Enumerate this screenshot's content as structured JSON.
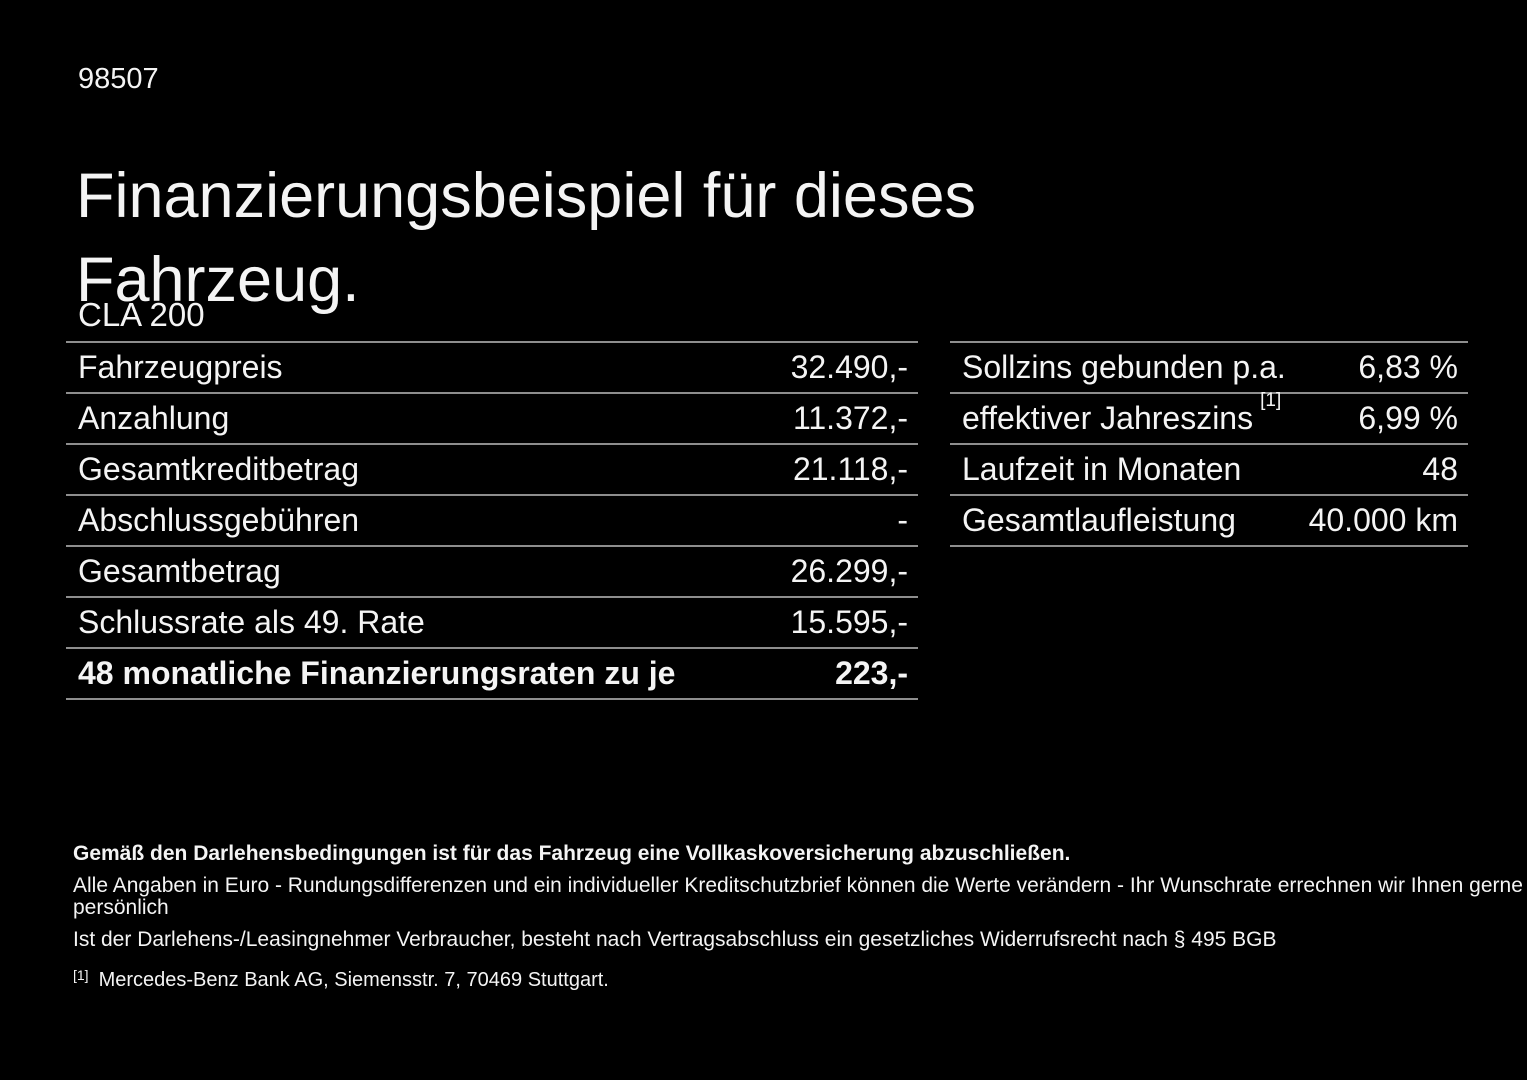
{
  "page": {
    "id_number": "98507",
    "title": "Finanzierungsbeispiel für dieses\nFahrzeug.",
    "model": "CLA 200"
  },
  "left_table": {
    "rows": [
      {
        "label": "Fahrzeugpreis",
        "value": "32.490,-"
      },
      {
        "label": "Anzahlung",
        "value": "11.372,-"
      },
      {
        "label": "Gesamtkreditbetrag",
        "value": "21.118,-"
      },
      {
        "label": "Abschlussgebühren",
        "value": "-"
      },
      {
        "label": "Gesamtbetrag",
        "value": "26.299,-"
      },
      {
        "label": "Schlussrate als 49. Rate",
        "value": "15.595,-"
      },
      {
        "label": "48 monatliche Finanzierungsraten zu je",
        "value": "223,-"
      }
    ]
  },
  "right_table": {
    "rows": [
      {
        "label": "Sollzins gebunden p.a.",
        "value": "6,83 %"
      },
      {
        "label": "effektiver Jahreszins",
        "sup": "[1]",
        "value": "6,99 %"
      },
      {
        "label": "Laufzeit in Monaten",
        "value": "48"
      },
      {
        "label": "Gesamtlaufleistung",
        "value": "40.000 km"
      }
    ]
  },
  "footer": {
    "bold_line": "Gemäß den Darlehensbedingungen ist für das Fahrzeug eine Vollkaskoversicherung abzuschließen.",
    "line2": "Alle Angaben in Euro - Rundungsdifferenzen und ein individueller Kreditschutzbrief können die Werte verändern - Ihr Wunschrate errechnen wir Ihnen gerne persönlich",
    "line3": "Ist der Darlehens-/Leasingnehmer Verbraucher, besteht nach Vertragsabschluss ein gesetzliches Widerrufsrecht nach § 495 BGB",
    "footnote_marker": "[1]",
    "footnote_text": "Mercedes-Benz Bank AG, Siemensstr. 7, 70469 Stuttgart."
  },
  "colors": {
    "background": "#000000",
    "text": "#f4f4f4",
    "divider": "#8e8e8e"
  }
}
